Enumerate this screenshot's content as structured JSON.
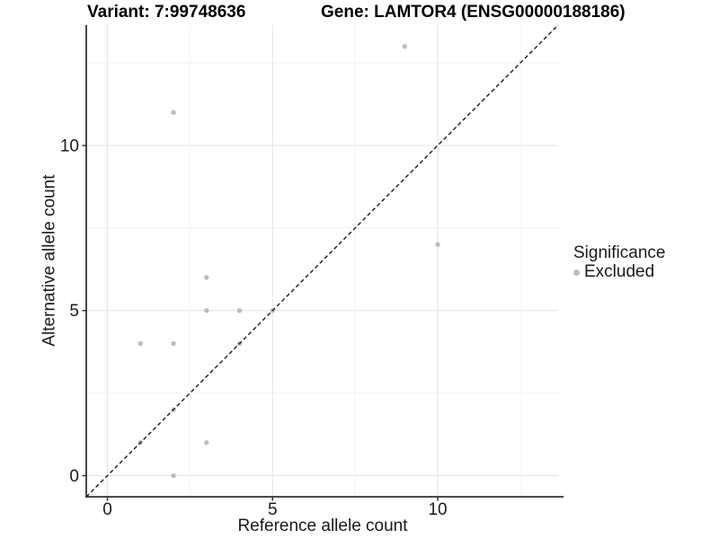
{
  "figure": {
    "variant_title": "Variant: 7:99748636",
    "gene_title": "Gene: LAMTOR4 (ENSG00000188186)"
  },
  "axes": {
    "x_label": "Reference allele count",
    "y_label": "Alternative allele count"
  },
  "legend": {
    "title": "Significance",
    "items": [
      {
        "label": "Excluded",
        "color": "#bdbdbd"
      }
    ]
  },
  "chart_data": {
    "type": "scatter",
    "title": "Variant: 7:99748636 / Gene: LAMTOR4 (ENSG00000188186)",
    "xlabel": "Reference allele count",
    "ylabel": "Alternative allele count",
    "xlim": [
      -0.64,
      13.65
    ],
    "ylim": [
      -0.64,
      13.65
    ],
    "x_ticks": [
      0,
      5,
      10
    ],
    "y_ticks": [
      0,
      5,
      10
    ],
    "minor_gridlines": [
      2.5,
      7.5,
      12.5
    ],
    "grid": true,
    "legend_position": "right",
    "identity_line": {
      "equation": "y = x",
      "style": "dashed",
      "color": "#1a1a1a"
    },
    "series": [
      {
        "name": "Excluded",
        "color": "#bdbdbd",
        "points": [
          [
            1,
            1
          ],
          [
            1,
            4
          ],
          [
            2,
            0
          ],
          [
            2,
            2
          ],
          [
            2,
            4
          ],
          [
            2,
            11
          ],
          [
            3,
            1
          ],
          [
            3,
            5
          ],
          [
            3,
            6
          ],
          [
            4,
            4
          ],
          [
            4,
            5
          ],
          [
            5,
            5
          ],
          [
            9,
            13
          ],
          [
            10,
            7
          ]
        ]
      }
    ],
    "colors": {
      "point": "#bdbdbd",
      "grid_major": "#e4e4e4",
      "grid_minor": "#f1f1f1",
      "axis_line": "#333333",
      "tick_text": "#1a1a1a"
    }
  }
}
